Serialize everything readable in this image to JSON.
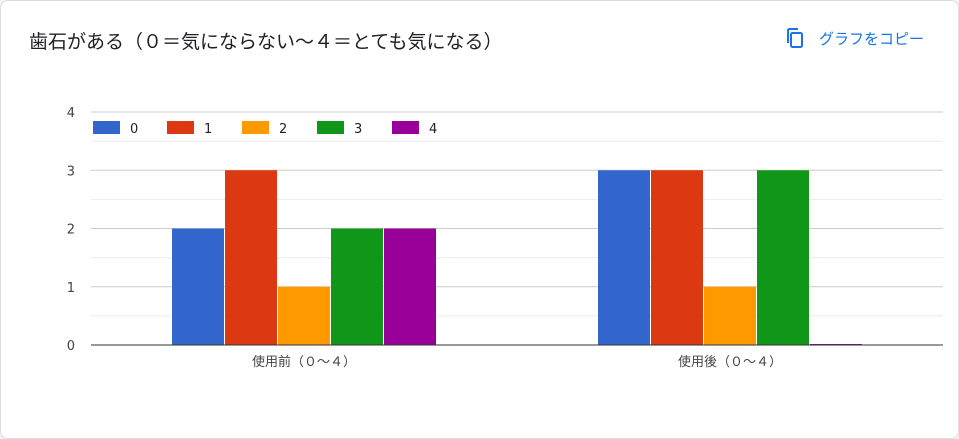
{
  "header": {
    "title": "歯石がある（０＝気にならない〜４＝とても気になる）",
    "copy_label": "グラフをコピー",
    "copy_icon": "copy-icon"
  },
  "colors": {
    "accent": "#1a73e8",
    "series": [
      "#3366cc",
      "#dc3912",
      "#ff9900",
      "#109618",
      "#990099"
    ]
  },
  "chart_data": {
    "type": "bar",
    "title": "歯石がある（０＝気にならない〜４＝とても気になる）",
    "categories": [
      "使用前（０〜４）",
      "使用後（０〜４）"
    ],
    "series": [
      {
        "name": "0",
        "values": [
          2,
          3
        ]
      },
      {
        "name": "1",
        "values": [
          3,
          3
        ]
      },
      {
        "name": "2",
        "values": [
          1,
          1
        ]
      },
      {
        "name": "3",
        "values": [
          2,
          3
        ]
      },
      {
        "name": "4",
        "values": [
          2,
          0
        ]
      }
    ],
    "yticks": [
      "0",
      "1",
      "2",
      "3",
      "4"
    ],
    "ylim": [
      0,
      4
    ],
    "grid": true,
    "legend_position": "top-left",
    "xlabel": "",
    "ylabel": ""
  }
}
